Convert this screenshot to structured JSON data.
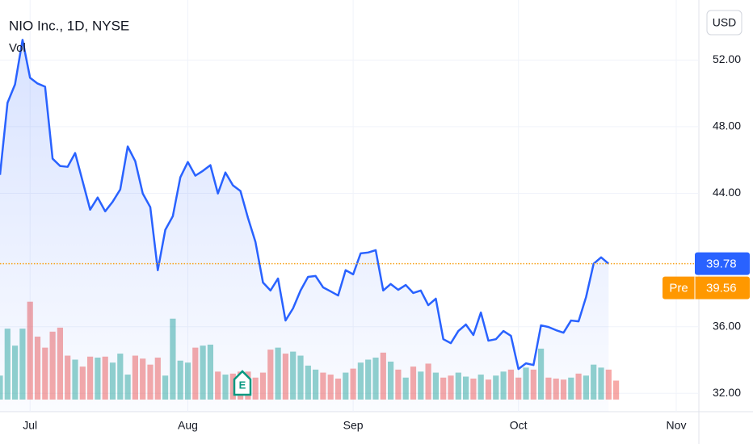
{
  "chart_data": {
    "type": "line",
    "title": "NIO Inc., 1D, NYSE",
    "indicator": "Vol",
    "currency": "USD",
    "earnings_marker": "E",
    "color": "#2962ff",
    "up_color": "#26a69a",
    "down_color": "#ef5350",
    "grid": true,
    "categories": [
      null,
      null,
      null,
      null,
      "Jul",
      null,
      null,
      null,
      null,
      null,
      null,
      null,
      null,
      null,
      null,
      null,
      null,
      null,
      null,
      null,
      null,
      null,
      null,
      null,
      null,
      "Aug",
      null,
      null,
      null,
      null,
      null,
      null,
      null,
      null,
      null,
      null,
      null,
      null,
      null,
      null,
      null,
      null,
      null,
      null,
      null,
      null,
      null,
      "Sep",
      null,
      null,
      null,
      null,
      null,
      null,
      null,
      null,
      null,
      null,
      null,
      null,
      null,
      null,
      null,
      null,
      null,
      null,
      null,
      null,
      null,
      "Oct",
      null,
      null,
      null,
      null,
      null,
      null,
      null,
      null,
      null,
      null,
      null,
      null,
      null,
      null,
      null,
      null,
      null,
      null,
      null,
      null,
      "Nov",
      null,
      null,
      null
    ],
    "values": [
      45.11,
      49.43,
      50.54,
      53.21,
      50.93,
      50.59,
      50.4,
      46.08,
      45.64,
      45.59,
      46.42,
      44.72,
      43.02,
      43.75,
      42.92,
      43.5,
      44.23,
      46.81,
      45.93,
      43.99,
      43.17,
      39.39,
      41.81,
      42.63,
      44.96,
      45.88,
      45.06,
      45.35,
      45.69,
      43.99,
      45.25,
      44.48,
      44.14,
      42.53,
      41.08,
      38.65,
      38.17,
      38.89,
      36.37,
      37.1,
      38.17,
      38.99,
      39.04,
      38.36,
      38.12,
      37.87,
      39.39,
      39.14,
      40.4,
      40.45,
      40.59,
      38.17,
      38.56,
      38.21,
      38.5,
      38.02,
      38.17,
      37.29,
      37.68,
      35.25,
      35.01,
      35.74,
      36.13,
      35.5,
      36.85,
      35.16,
      35.25,
      35.74,
      35.45,
      33.46,
      33.8,
      33.7,
      36.08,
      35.98,
      35.79,
      35.64,
      36.37,
      36.32,
      37.78,
      39.77,
      40.16,
      39.78,
      null,
      null,
      null,
      null,
      null,
      null,
      null,
      null,
      null,
      null,
      null,
      null
    ],
    "volume": {
      "axis": "y2",
      "values": [
        24,
        71,
        54,
        71,
        98,
        63,
        52,
        68,
        72,
        44,
        40,
        33,
        43,
        42,
        43,
        37,
        46,
        25,
        44,
        41,
        35,
        42,
        24,
        81,
        39,
        37,
        52,
        54,
        55,
        28,
        25,
        26,
        28,
        28,
        22,
        27,
        50,
        52,
        46,
        48,
        44,
        34,
        30,
        27,
        25,
        21,
        27,
        31,
        37,
        40,
        42,
        47,
        38,
        30,
        22,
        33,
        28,
        36,
        27,
        22,
        24,
        27,
        23,
        21,
        25,
        20,
        24,
        28,
        30,
        22,
        32,
        30,
        51,
        22,
        21,
        20,
        22,
        26,
        24,
        35,
        32,
        30,
        19,
        null,
        null,
        null,
        null,
        null,
        null,
        null,
        null,
        null,
        null,
        null
      ]
    },
    "ylim": [
      30.9,
      55.6
    ],
    "yticks": [
      {
        "value": 32,
        "label": "32.00"
      },
      {
        "value": 36,
        "label": "36.00"
      },
      {
        "value": 44,
        "label": "44.00"
      },
      {
        "value": 48,
        "label": "48.00"
      },
      {
        "value": 52,
        "label": "52.00"
      }
    ],
    "y2lim": [
      0,
      400
    ],
    "last_price": 39.78,
    "pre_market": {
      "label": "Pre",
      "value": 39.56
    }
  }
}
